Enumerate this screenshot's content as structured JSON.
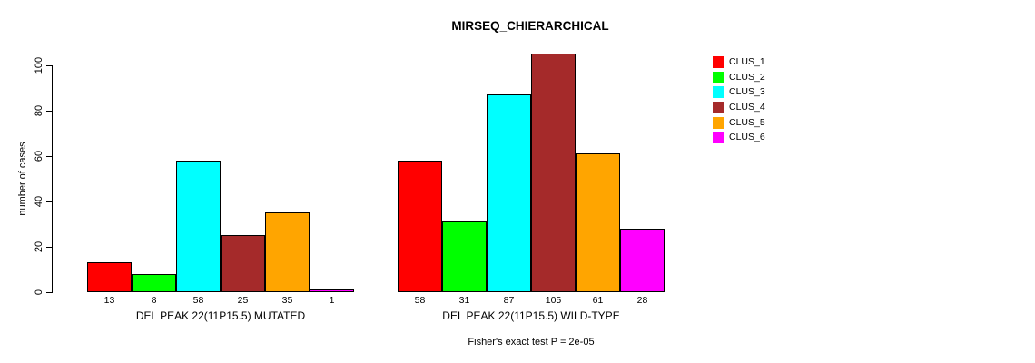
{
  "chart_data": {
    "type": "bar",
    "title": "MIRSEQ_CHIERARCHICAL",
    "ylabel": "number of cases",
    "xlabel": "",
    "ylim": [
      0,
      105
    ],
    "yticks": [
      0,
      20,
      40,
      60,
      80,
      100
    ],
    "grid": false,
    "legend_position": "right-outside",
    "groups": [
      {
        "label": "DEL PEAK 22(11P15.5) MUTATED",
        "values": [
          13,
          8,
          58,
          25,
          35,
          1
        ]
      },
      {
        "label": "DEL PEAK 22(11P15.5) WILD-TYPE",
        "values": [
          58,
          31,
          87,
          105,
          61,
          28
        ]
      }
    ],
    "series_colors": [
      "#FF0000",
      "#00FF00",
      "#00FFFF",
      "#A52A2A",
      "#FFA500",
      "#FF00FF"
    ],
    "legend": [
      {
        "label": "CLUS_1",
        "color": "#FF0000"
      },
      {
        "label": "CLUS_2",
        "color": "#00FF00"
      },
      {
        "label": "CLUS_3",
        "color": "#00FFFF"
      },
      {
        "label": "CLUS_4",
        "color": "#A52A2A"
      },
      {
        "label": "CLUS_5",
        "color": "#FFA500"
      },
      {
        "label": "CLUS_6",
        "color": "#FF00FF"
      }
    ],
    "annotation": "Fisher's exact test P = 2e-05"
  }
}
